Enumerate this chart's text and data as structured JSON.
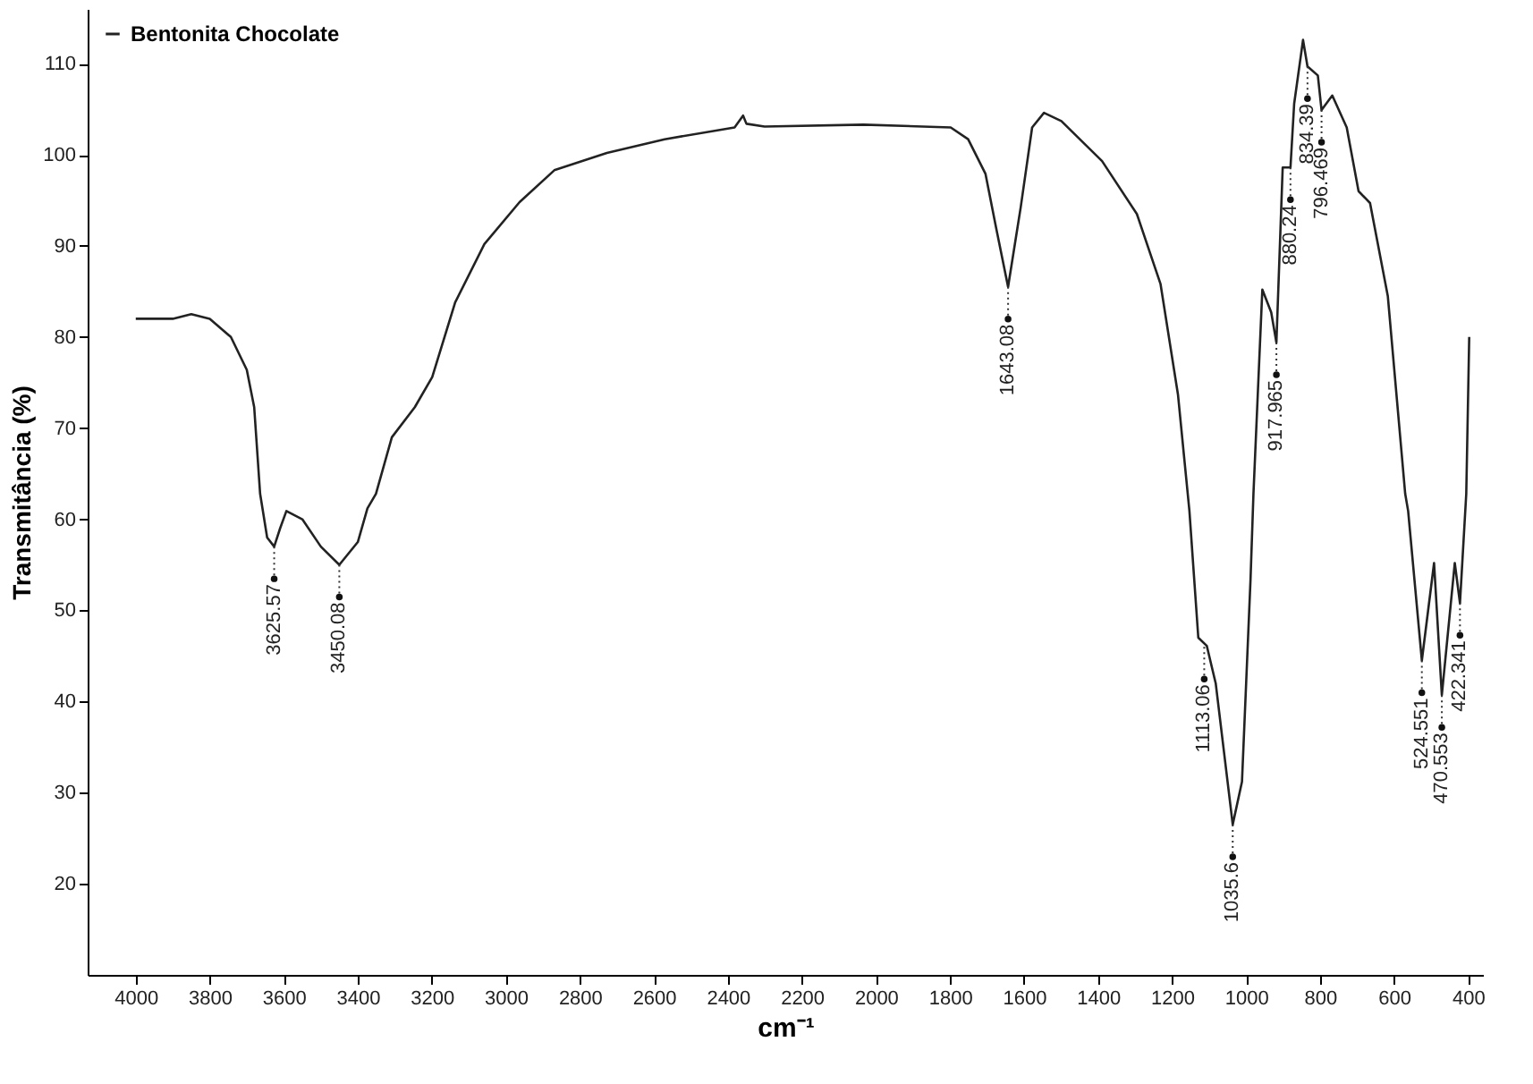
{
  "chart_data": {
    "type": "line",
    "xlabel": "cm⁻¹",
    "ylabel": "Transmitância (%)",
    "series": [
      {
        "name": "Bentonita Chocolate",
        "color": "#222222",
        "x": [
          4000,
          3900,
          3850,
          3800,
          3743,
          3700,
          3680,
          3664,
          3645,
          3626,
          3610,
          3593,
          3550,
          3500,
          3450,
          3400,
          3374,
          3351,
          3308,
          3246,
          3199,
          3137,
          3058,
          2963,
          2869,
          2727,
          2571,
          2382,
          2359,
          2350,
          2301,
          2034,
          1798,
          1751,
          1704,
          1673,
          1643,
          1609,
          1578,
          1546,
          1499,
          1389,
          1295,
          1231,
          1184,
          1153,
          1129,
          1106,
          1082,
          1036,
          1011,
          988,
          980,
          956,
          932,
          918,
          901,
          886,
          880,
          870,
          846,
          834,
          806,
          796,
          767,
          728,
          696,
          665,
          617,
          570,
          562,
          525,
          492,
          471,
          436,
          422,
          405,
          397
        ],
        "values": [
          82,
          82,
          82.5,
          82,
          80,
          76.4,
          72.3,
          62.8,
          58,
          57,
          59,
          60.9,
          60,
          57,
          55,
          57.5,
          61.2,
          62.8,
          69,
          72.3,
          75.6,
          83.8,
          90.2,
          94.8,
          98.3,
          100.2,
          101.7,
          103,
          104.3,
          103.4,
          103.1,
          103.3,
          103,
          101.7,
          97.9,
          91.5,
          85.5,
          94.2,
          103,
          104.6,
          103.7,
          99.3,
          93.5,
          85.8,
          73.7,
          60.9,
          47,
          46.1,
          42,
          26.5,
          31.2,
          53.3,
          62.8,
          85.2,
          82.7,
          79.4,
          98.6,
          98.6,
          98.6,
          105.6,
          112.6,
          109.7,
          108.7,
          104.9,
          106.5,
          103,
          96,
          94.7,
          84.5,
          62.8,
          60.9,
          44.5,
          55.2,
          40.7,
          55.2,
          50.8,
          62.8,
          80
        ]
      }
    ],
    "annotations": [
      {
        "text": "3625.57",
        "x": 3626,
        "y": 57
      },
      {
        "text": "3450.08",
        "x": 3450,
        "y": 55
      },
      {
        "text": "1643.08",
        "x": 1643,
        "y": 85.5
      },
      {
        "text": "1113.06",
        "x": 1113,
        "y": 46
      },
      {
        "text": "1035.6",
        "x": 1036,
        "y": 26.5
      },
      {
        "text": "917.965",
        "x": 918,
        "y": 79.4
      },
      {
        "text": "880.24",
        "x": 880,
        "y": 98.6
      },
      {
        "text": "834.39",
        "x": 834,
        "y": 109.7
      },
      {
        "text": "796.469",
        "x": 796,
        "y": 104.9
      },
      {
        "text": "524.551",
        "x": 525,
        "y": 44.5
      },
      {
        "text": "470.553",
        "x": 471,
        "y": 40.7
      },
      {
        "text": "422.341",
        "x": 422,
        "y": 50.8
      }
    ],
    "xlim": [
      4130,
      360
    ],
    "ylim": [
      10,
      116
    ],
    "xticks": [
      4000,
      3800,
      3600,
      3400,
      3200,
      3000,
      2800,
      2600,
      2400,
      2200,
      2000,
      1800,
      1600,
      1400,
      1200,
      1000,
      800,
      600,
      400
    ],
    "yticks": [
      20,
      30,
      40,
      50,
      60,
      70,
      80,
      90,
      100,
      110
    ],
    "grid": false,
    "legend": "top left",
    "line_style": "solid"
  }
}
